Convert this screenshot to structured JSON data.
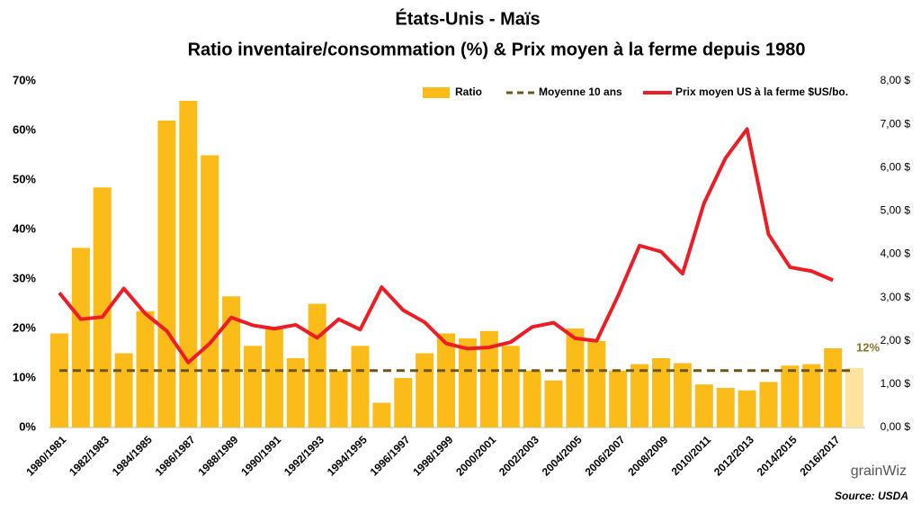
{
  "chart_data": {
    "type": "bar_line",
    "title": "États-Unis - Maïs",
    "subtitle": "Ratio inventaire/consommation (%) & Prix moyen à la ferme depuis 1980",
    "source": "Source: USDA",
    "logo": "grainWiz",
    "annotation": "12%",
    "categories": [
      "1980/1981",
      null,
      "1982/1983",
      null,
      "1984/1985",
      null,
      "1986/1987",
      null,
      "1988/1989",
      null,
      "1990/1991",
      null,
      "1992/1993",
      null,
      "1994/1995",
      null,
      "1996/1997",
      null,
      "1998/1999",
      null,
      "2000/2001",
      null,
      "2002/2003",
      null,
      "2004/2005",
      null,
      "2006/2007",
      null,
      "2008/2009",
      null,
      "2010/2011",
      null,
      "2012/2013",
      null,
      "2014/2015",
      null,
      "2016/2017",
      null
    ],
    "series": [
      {
        "name": "Ratio",
        "kind": "bar",
        "color": "#fbbc1a",
        "colors": [
          "#fbbc1a",
          "#fbbc1a",
          "#fbbc1a",
          "#fbbc1a",
          "#fbbc1a",
          "#fbbc1a",
          "#fbbc1a",
          "#fbbc1a",
          "#fbbc1a",
          "#fbbc1a",
          "#fbbc1a",
          "#fbbc1a",
          "#fbbc1a",
          "#fbbc1a",
          "#fbbc1a",
          "#fbbc1a",
          "#fbbc1a",
          "#fbbc1a",
          "#fbbc1a",
          "#fbbc1a",
          "#fbbc1a",
          "#fbbc1a",
          "#fbbc1a",
          "#fbbc1a",
          "#fbbc1a",
          "#fbbc1a",
          "#fbbc1a",
          "#fbbc1a",
          "#fbbc1a",
          "#fbbc1a",
          "#fbbc1a",
          "#fbbc1a",
          "#fbbc1a",
          "#fbbc1a",
          "#fbbc1a",
          "#fbbc1a",
          "#fbbc1a",
          "#fde39c"
        ],
        "values": [
          19,
          36.3,
          48.5,
          15,
          23.5,
          62,
          66,
          55,
          26.5,
          16.5,
          20,
          14,
          25,
          11.5,
          16.5,
          5,
          10,
          15,
          19,
          18,
          19.5,
          16.5,
          11.5,
          9.5,
          20,
          17.5,
          11.5,
          12.8,
          14,
          13,
          8.7,
          8,
          7.5,
          9.2,
          12.5,
          12.8,
          16,
          12
        ]
      },
      {
        "name": "Moyenne 10 ans",
        "kind": "dashed",
        "color": "#6b5617",
        "values": [
          11.5,
          11.5,
          11.5,
          11.5,
          11.5,
          11.5,
          11.5,
          11.5,
          11.5,
          11.5,
          11.5,
          11.5,
          11.5,
          11.5,
          11.5,
          11.5,
          11.5,
          11.5,
          11.5,
          11.5,
          11.5,
          11.5,
          11.5,
          11.5,
          11.5,
          11.5,
          11.5,
          11.5,
          11.5,
          11.5,
          11.5,
          11.5,
          11.5,
          11.5,
          11.5,
          11.5,
          11.5,
          11.5
        ]
      },
      {
        "name": "Prix moyen US à la ferme $US/bo.",
        "kind": "line",
        "axis": "y2",
        "color": "#ee1c25",
        "values": [
          3.11,
          2.5,
          2.55,
          3.21,
          2.63,
          2.23,
          1.5,
          1.94,
          2.54,
          2.36,
          2.28,
          2.37,
          2.07,
          2.5,
          2.26,
          3.24,
          2.71,
          2.43,
          1.94,
          1.82,
          1.85,
          1.97,
          2.32,
          2.42,
          2.06,
          2.0,
          3.04,
          4.2,
          4.06,
          3.55,
          5.18,
          6.22,
          6.89,
          4.46,
          3.7,
          3.61,
          3.4,
          null
        ]
      }
    ],
    "ylim": [
      0,
      70
    ],
    "yticks": [
      {
        "value": 0,
        "label": "0%"
      },
      {
        "value": 10,
        "label": "10%"
      },
      {
        "value": 20,
        "label": "20%"
      },
      {
        "value": 30,
        "label": "30%"
      },
      {
        "value": 40,
        "label": "40%"
      },
      {
        "value": 50,
        "label": "50%"
      },
      {
        "value": 60,
        "label": "60%"
      },
      {
        "value": 70,
        "label": "70%"
      }
    ],
    "y2lim": [
      0,
      8
    ],
    "y2ticks": [
      {
        "value": 0,
        "label": "0,00 $"
      },
      {
        "value": 1,
        "label": "1,00 $"
      },
      {
        "value": 2,
        "label": "2,00 $"
      },
      {
        "value": 3,
        "label": "3,00 $"
      },
      {
        "value": 4,
        "label": "4,00 $"
      },
      {
        "value": 5,
        "label": "5,00 $"
      },
      {
        "value": 6,
        "label": "6,00 $"
      },
      {
        "value": 7,
        "label": "7,00 $"
      },
      {
        "value": 8,
        "label": "8,00 $"
      }
    ],
    "legend": "top"
  }
}
